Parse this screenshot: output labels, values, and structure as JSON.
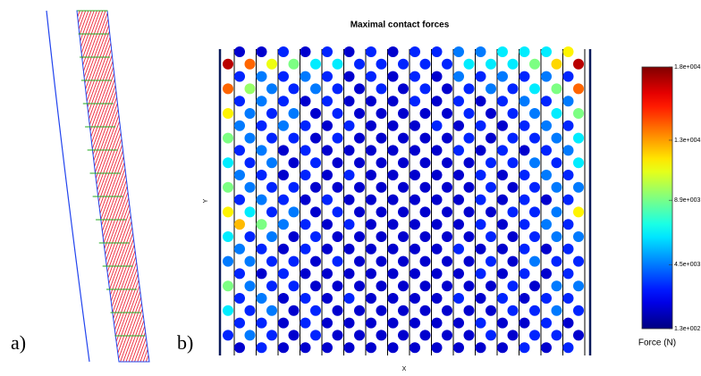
{
  "panel_labels": [
    "a)",
    "b)"
  ],
  "chart_data": {
    "type": "dot_grid",
    "title": "Maximal contact forces",
    "xlabel": "X",
    "ylabel": "Y",
    "colorbar_label": "Force (N)",
    "colormap": "jet",
    "clim": [
      130,
      18000
    ],
    "colorbar_ticks": [
      {
        "value": 130,
        "label": "1.3e+002"
      },
      {
        "value": 4500,
        "label": "4.5e+003"
      },
      {
        "value": 8900,
        "label": "8.9e+003"
      },
      {
        "value": 13000,
        "label": "1.3e+004"
      },
      {
        "value": 18000,
        "label": "1.8e+004"
      }
    ],
    "rows": [
      [
        1500,
        1500,
        3000,
        1500,
        3000,
        1500,
        3000,
        1500,
        3000,
        3000,
        4500,
        4500,
        6500,
        6500,
        6500,
        11500
      ],
      [
        17000,
        14000,
        11000,
        9000,
        6500,
        6500,
        3000,
        3000,
        3000,
        3000,
        3000,
        6500,
        6500,
        6500,
        9000,
        12000,
        17000
      ],
      [
        3000,
        4500,
        3000,
        4500,
        3000,
        1500,
        3000,
        1500,
        3000,
        1500,
        4500,
        3000,
        4500,
        3000,
        4500,
        3000
      ],
      [
        14000,
        9500,
        4500,
        3000,
        4500,
        3000,
        1500,
        3000,
        1500,
        3000,
        1500,
        3000,
        4500,
        3000,
        6500,
        9000,
        14000
      ],
      [
        3000,
        4500,
        3000,
        1500,
        3000,
        1500,
        1500,
        1500,
        3000,
        1500,
        3000,
        1500,
        3000,
        4500,
        3000,
        4500
      ],
      [
        11500,
        4500,
        3000,
        4500,
        1500,
        3000,
        1500,
        1500,
        1500,
        1500,
        1500,
        3000,
        1500,
        3000,
        4500,
        6500,
        9000
      ],
      [
        4500,
        3000,
        4500,
        3000,
        1500,
        3000,
        1500,
        1500,
        1500,
        3000,
        1500,
        3000,
        1500,
        3000,
        4500,
        3000
      ],
      [
        9000,
        4500,
        3000,
        3000,
        1500,
        3000,
        1500,
        1500,
        1500,
        1500,
        1500,
        3000,
        1500,
        3000,
        3000,
        4500,
        6500
      ],
      [
        3000,
        4500,
        1500,
        3000,
        1500,
        1500,
        1500,
        1500,
        1500,
        1500,
        3000,
        1500,
        3000,
        1500,
        3000,
        4500
      ],
      [
        6500,
        3000,
        4500,
        1500,
        3000,
        1500,
        1500,
        1500,
        1500,
        1500,
        1500,
        1500,
        3000,
        3000,
        4500,
        3000,
        6500
      ],
      [
        4500,
        3000,
        1500,
        3000,
        1500,
        3000,
        1500,
        1500,
        1500,
        1500,
        1500,
        3000,
        1500,
        3000,
        4500,
        3000
      ],
      [
        9000,
        4500,
        3000,
        3000,
        1500,
        1500,
        1500,
        1500,
        1500,
        1500,
        1500,
        1500,
        3000,
        1500,
        3000,
        4500,
        4500
      ],
      [
        3000,
        4500,
        3000,
        1500,
        3000,
        1500,
        1500,
        1500,
        1500,
        1500,
        1500,
        3000,
        1500,
        3000,
        1500,
        3000
      ],
      [
        11500,
        6500,
        3000,
        4500,
        1500,
        3000,
        1500,
        1500,
        1500,
        1500,
        1500,
        1500,
        1500,
        3000,
        3000,
        4500,
        11500
      ],
      [
        12500,
        9000,
        4500,
        3000,
        1500,
        3000,
        1500,
        1500,
        1500,
        1500,
        1500,
        3000,
        1500,
        3000,
        4500,
        3000
      ],
      [
        6500,
        3000,
        4500,
        1500,
        3000,
        1500,
        1500,
        1500,
        1500,
        1500,
        1500,
        1500,
        3000,
        1500,
        3000,
        4500,
        4500
      ],
      [
        4500,
        3000,
        1500,
        3000,
        1500,
        1500,
        1500,
        1500,
        1500,
        1500,
        3000,
        1500,
        1500,
        3000,
        1500,
        3000
      ],
      [
        4500,
        4500,
        3000,
        3000,
        1500,
        3000,
        1500,
        1500,
        1500,
        1500,
        1500,
        1500,
        3000,
        1500,
        4500,
        3000,
        3000
      ],
      [
        3000,
        1500,
        3000,
        1500,
        1500,
        1500,
        1500,
        1500,
        1500,
        1500,
        1500,
        3000,
        1500,
        3000,
        1500,
        3000
      ],
      [
        9000,
        4500,
        3000,
        3000,
        1500,
        1500,
        1500,
        1500,
        1500,
        1500,
        1500,
        1500,
        1500,
        3000,
        1500,
        4500,
        4500
      ],
      [
        3000,
        4500,
        1500,
        3000,
        1500,
        3000,
        1500,
        1500,
        1500,
        1500,
        3000,
        1500,
        3000,
        1500,
        3000,
        3000
      ],
      [
        6500,
        3000,
        4500,
        1500,
        3000,
        1500,
        1500,
        1500,
        1500,
        1500,
        1500,
        1500,
        1500,
        3000,
        3000,
        4500,
        3000
      ],
      [
        3000,
        3000,
        1500,
        3000,
        1500,
        1500,
        1500,
        1500,
        1500,
        1500,
        1500,
        3000,
        1500,
        1500,
        3000,
        1500
      ],
      [
        3000,
        4500,
        3000,
        1500,
        3000,
        1500,
        1500,
        1500,
        1500,
        1500,
        1500,
        1500,
        3000,
        1500,
        3000,
        3000,
        1500
      ],
      [
        1500,
        3000,
        1500,
        1500,
        1500,
        1500,
        1500,
        1500,
        1500,
        1500,
        1500,
        1500,
        1500,
        3000,
        1500,
        3000
      ]
    ]
  }
}
